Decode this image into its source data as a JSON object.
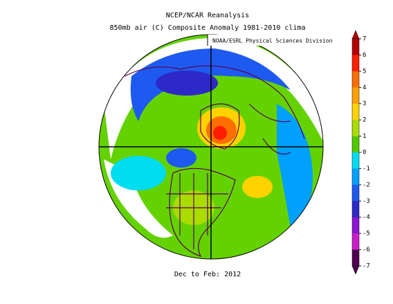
{
  "header": {
    "title": "NCEP/NCAR Reanalysis",
    "subtitle": "850mb air (C) Composite Anomaly 1981-2010 clima",
    "credit": "NOAA/ESRL Physical Sciences Division"
  },
  "colorbar": {
    "ticks": [
      7,
      6,
      5,
      4,
      3,
      2,
      1,
      0,
      -1,
      -2,
      -3,
      -4,
      -5,
      -6,
      -7
    ],
    "colors": [
      "#b40000",
      "#ff1e00",
      "#ff6e00",
      "#ffa000",
      "#ffd200",
      "#aadc00",
      "#50c800",
      "#ffffff",
      "#00dcf0",
      "#00a0ff",
      "#1e5af0",
      "#2d28c8",
      "#8c14d2",
      "#c81ec8",
      "#500050"
    ]
  },
  "footer": {
    "period": "Dec to Feb: 2012"
  }
}
